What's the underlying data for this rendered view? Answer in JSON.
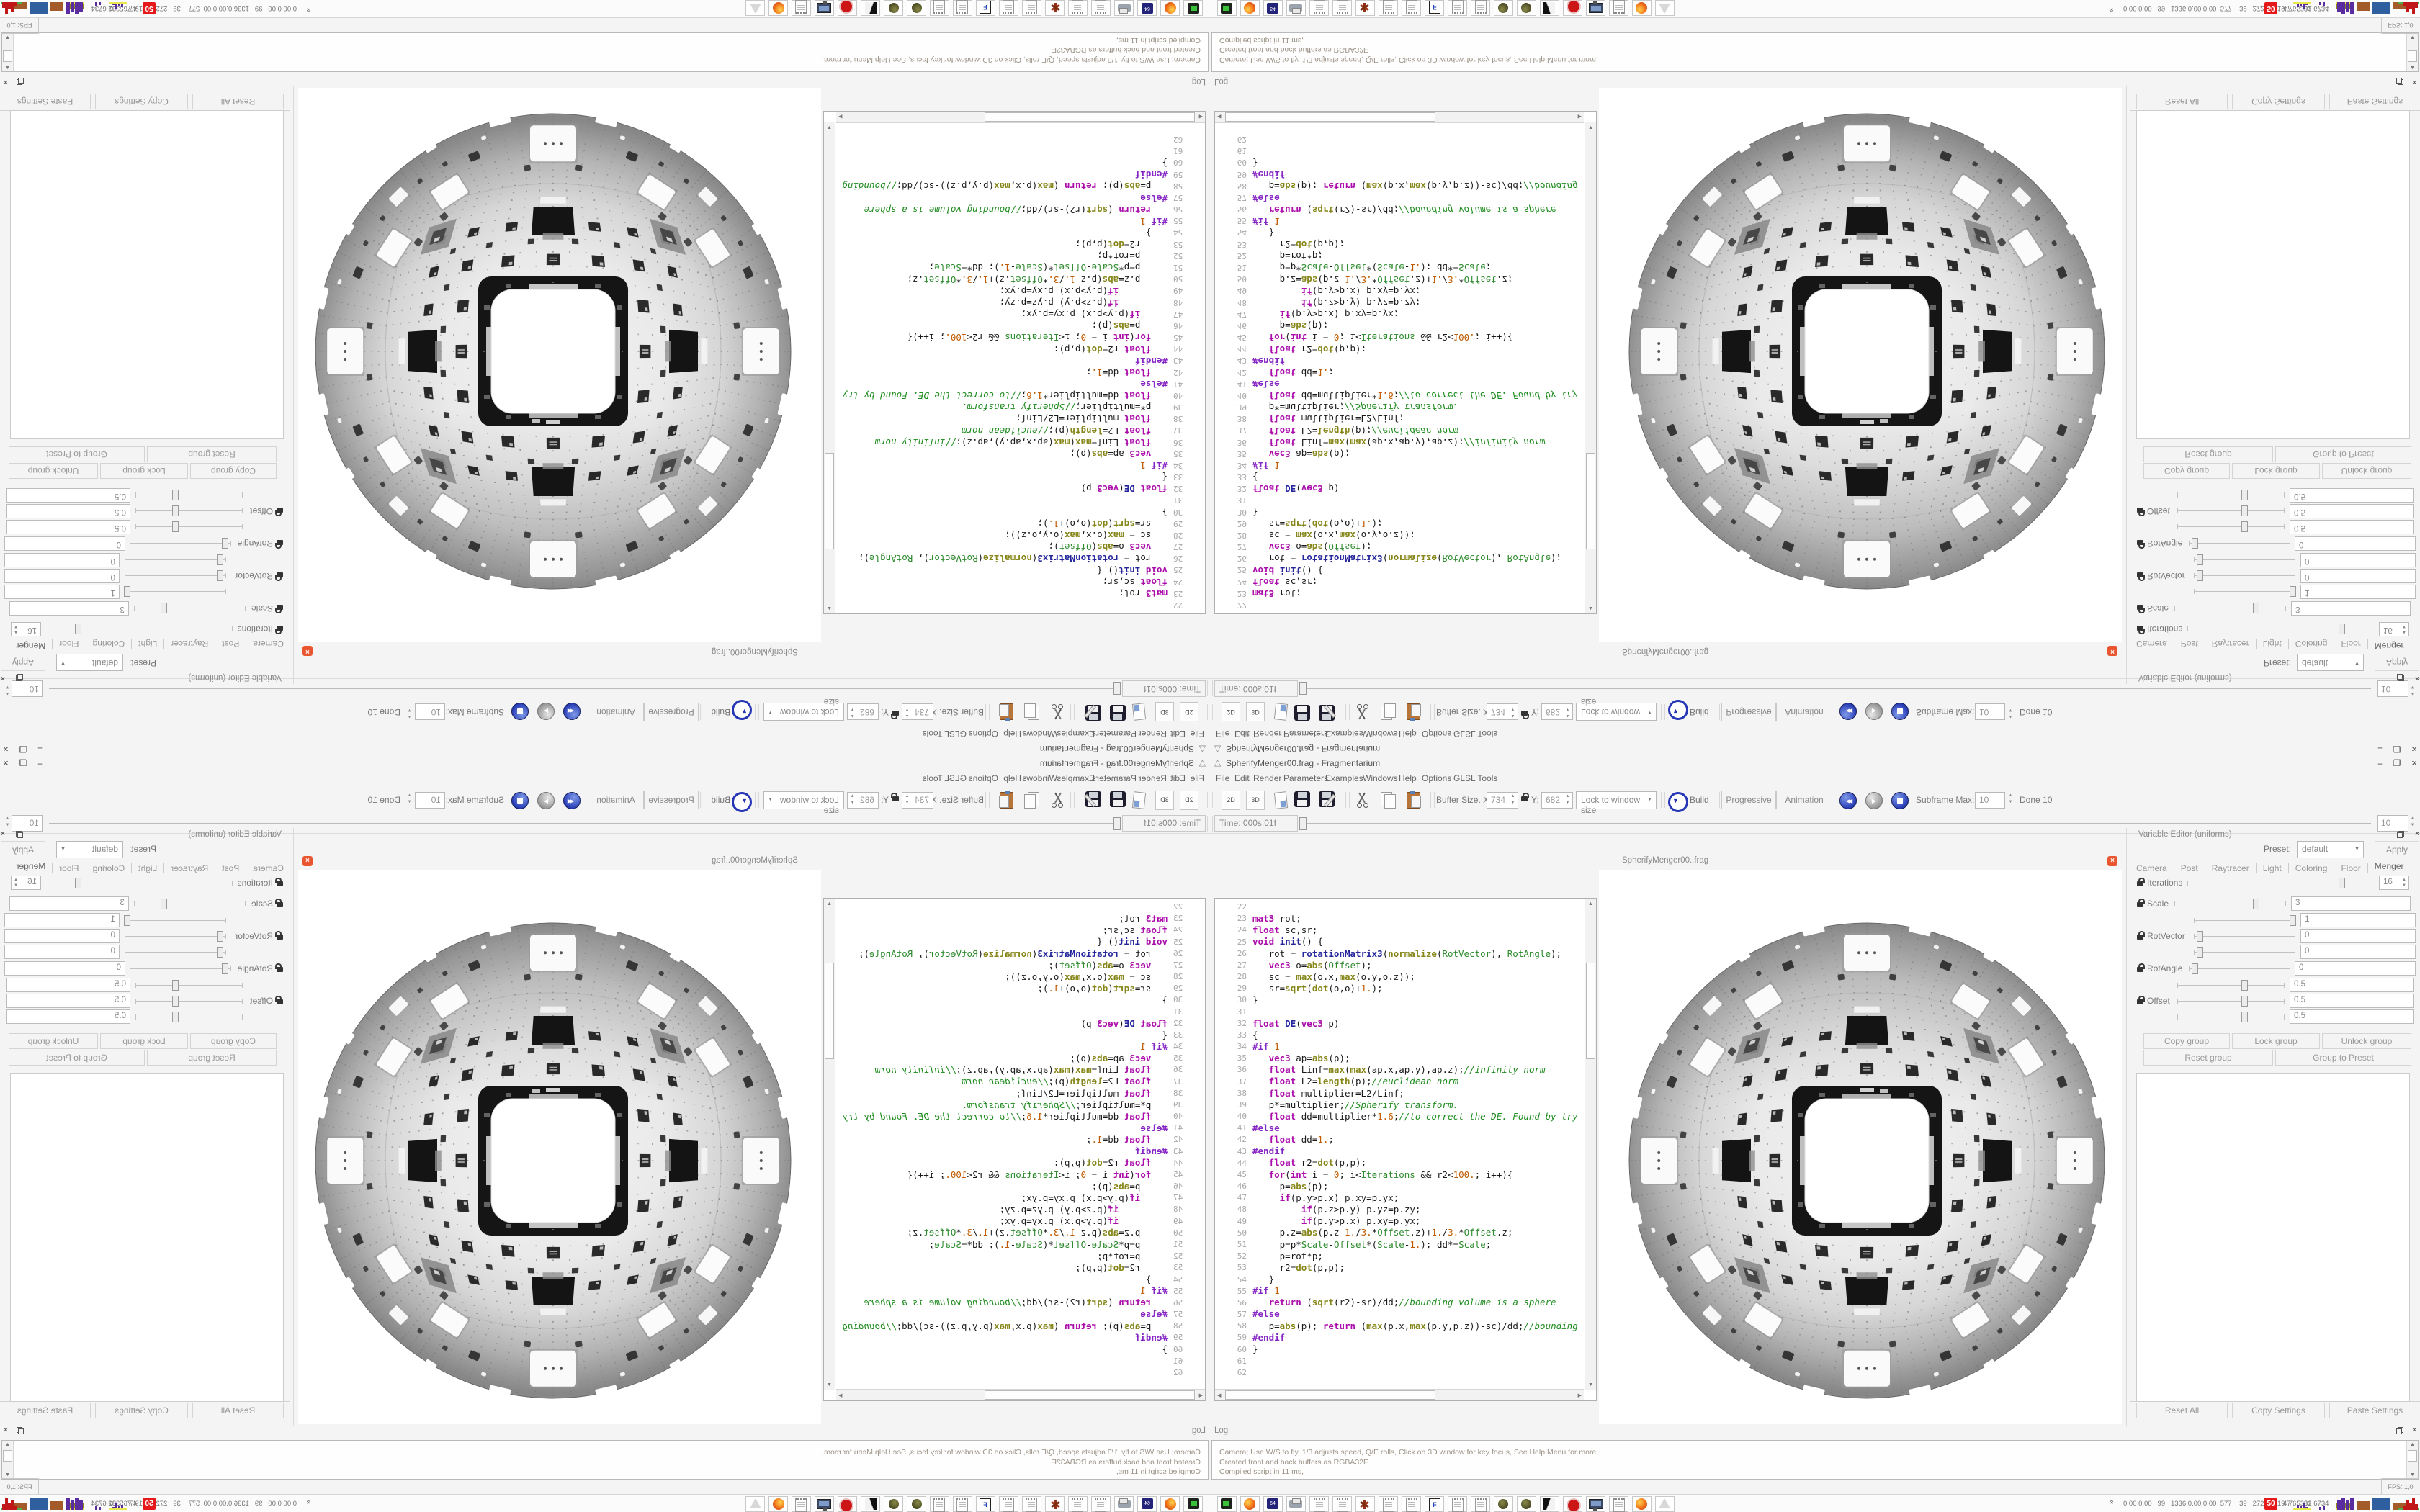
{
  "window": {
    "title": "SpherifyMenger00.frag - Fragmentarium",
    "minimize": "–",
    "maximize": "❐",
    "close": "×"
  },
  "menubar": [
    "File",
    "Edit",
    "Render",
    "Parameters",
    "Examples",
    "Windows",
    "Help",
    "Options",
    "GLSL Tools"
  ],
  "toolbar": {
    "view_2d": "2D",
    "view_3d": "3D",
    "buffer_label": "Buffer Size. X:",
    "buffer_x": "734",
    "buffer_y_label": "Y:",
    "buffer_y": "682",
    "lock_combo": "Lock to window size",
    "build": "Build",
    "progressive": "Progressive",
    "animation": "Animation",
    "subframe_label": "Subframe Max:",
    "subframe_max": "10",
    "done": "Done 10"
  },
  "timeline": {
    "label": "Time: 000s:01f",
    "value": "10"
  },
  "editor": {
    "first_line": 22,
    "lines": [
      "",
      "mat3 rot;",
      "float sc,sr;",
      "void init() {",
      "   rot = rotationMatrix3(normalize(RotVector), RotAngle);",
      "   vec3 o=abs(Offset);",
      "   sc = max(o.x,max(o.y,o.z));",
      "   sr=sqrt(dot(o,o)+1.);",
      "}",
      "",
      "float DE(vec3 p)",
      "{",
      "#if 1",
      "   vec3 ap=abs(p);",
      "   float Linf=max(max(ap.x,ap.y),ap.z);//infinity norm",
      "   float L2=length(p);//euclidean norm",
      "   float multiplier=L2/Linf;",
      "   p*=multiplier;//Spherify transform.",
      "   float dd=multiplier*1.6;//to correct the DE. Found by try",
      "#else",
      "   float dd=1.;",
      "#endif",
      "   float r2=dot(p,p);",
      "   for(int i = 0; i<Iterations && r2<100.; i++){",
      "     p=abs(p);",
      "     if(p.y>p.x) p.xy=p.yx;",
      "         if(p.z>p.y) p.yz=p.zy;",
      "         if(p.y>p.x) p.xy=p.yx;",
      "     p.z=abs(p.z-1./3.*Offset.z)+1./3.*Offset.z;",
      "     p=p*Scale-Offset*(Scale-1.); dd*=Scale;",
      "     p=rot*p;",
      "     r2=dot(p,p);",
      "   }",
      "#if 1",
      "   return (sqrt(r2)-sr)/dd;//bounding volume is a sphere",
      "#else",
      "   p=abs(p); return (max(p.x,max(p.y,p.z))-sc)/dd;//bounding",
      "#endif",
      "}",
      "",
      ""
    ]
  },
  "render_view": {
    "title": "SpherifyMenger00..frag",
    "close": "×"
  },
  "variable_editor": {
    "title": "Variable Editor (uniforms)",
    "preset_label": "Preset:",
    "preset": "default",
    "apply": "Apply",
    "tabs": [
      "Camera",
      "Post",
      "Raytracer",
      "Light",
      "Coloring",
      "Floor",
      "Menger"
    ],
    "active_tab": "Menger",
    "params": [
      {
        "label": "Iterations",
        "values": [
          "16"
        ],
        "fracs": [
          0.845
        ]
      },
      {
        "label": "Scale",
        "values": [
          "3"
        ],
        "fracs": [
          0.74
        ]
      },
      {
        "label": "RotVector",
        "values": [
          "1",
          "0",
          "0"
        ],
        "fracs": [
          1,
          0.03,
          0.03
        ]
      },
      {
        "label": "RotAngle",
        "values": [
          "0"
        ],
        "fracs": [
          0.03
        ]
      },
      {
        "label": "Offset",
        "values": [
          "0.5",
          "0.5",
          "0.5"
        ],
        "fracs": [
          0.63,
          0.63,
          0.63
        ]
      }
    ],
    "group_buttons_row1": [
      "Copy group",
      "Lock group",
      "Unlock group"
    ],
    "group_buttons_row2": [
      "Reset group",
      "Group to Preset"
    ],
    "bottom_buttons": [
      "Reset All",
      "Copy Settings",
      "Paste Settings"
    ]
  },
  "log": {
    "title": "Log",
    "lines": [
      "Camera; Use W/S to fly, 1/3 adjusts speed, Q/E rolls, Click on 3D window for key focus, See Help Menu for more,",
      "Created front and back buffers as RGBA32F",
      "Compiled script in 11 ms,"
    ],
    "fps": "FPS: 1,0 (1s)"
  },
  "taskbar": {
    "icons": [
      "terminal-icon",
      "firefox-icon",
      "floppy64-icon",
      "printer-icon",
      "notepad-icon",
      "notepad-icon",
      "splat-icon",
      "notepad-icon",
      "notepad-icon",
      "fdoc-icon",
      "notepad-icon",
      "notepad-icon",
      "globe-icon",
      "globe-icon",
      "cat-icon",
      "badge-icon",
      "monitor-icon",
      "notepad-icon",
      "firefox-icon",
      "pyramid-icon"
    ],
    "stats_left": "0.00 0.00   99   1336 0.00 0.00  577    39   2728 2819  76    81",
    "alert_value": "50",
    "stats_right": "47   5332 6734"
  },
  "sphere": {
    "radius": 330,
    "surface_light": "#efefef",
    "surface_dark": "#878787",
    "hole_color": "#151515",
    "background": "#ffffff"
  }
}
